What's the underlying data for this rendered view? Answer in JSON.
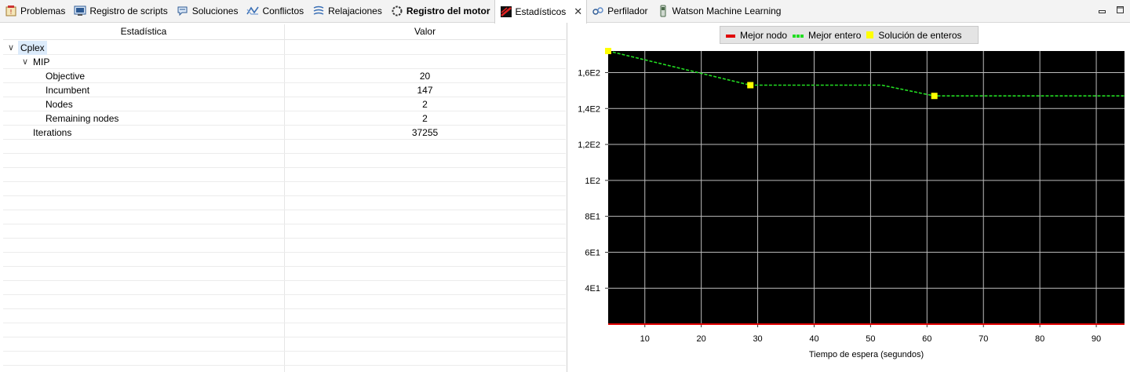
{
  "tabs": [
    {
      "label": "Problemas",
      "icon": "problems-icon"
    },
    {
      "label": "Registro de scripts",
      "icon": "script-log-icon"
    },
    {
      "label": "Soluciones",
      "icon": "solutions-icon"
    },
    {
      "label": "Conflictos",
      "icon": "conflicts-icon"
    },
    {
      "label": "Relajaciones",
      "icon": "relaxations-icon"
    },
    {
      "label": "Registro del motor",
      "icon": "engine-log-icon"
    },
    {
      "label": "Estadísticos",
      "icon": "statistics-icon"
    },
    {
      "label": "Perfilador",
      "icon": "profiler-icon"
    },
    {
      "label": "Watson Machine Learning",
      "icon": "watson-ml-icon"
    }
  ],
  "active_tab": "Estadísticos",
  "table": {
    "col_statistic": "Estadística",
    "col_value": "Valor",
    "rows": [
      {
        "name": "Cplex",
        "value": "",
        "level": 0,
        "expanded": true,
        "selected": true
      },
      {
        "name": "MIP",
        "value": "",
        "level": 1,
        "expanded": true
      },
      {
        "name": "Objective",
        "value": "20",
        "level": 2
      },
      {
        "name": "Incumbent",
        "value": "147",
        "level": 2
      },
      {
        "name": "Nodes",
        "value": "2",
        "level": 2
      },
      {
        "name": "Remaining nodes",
        "value": "2",
        "level": 2
      },
      {
        "name": "Iterations",
        "value": "37255",
        "level": 1
      }
    ]
  },
  "chart_data": {
    "type": "line",
    "xlabel": "Tiempo de espera (segundos)",
    "ylabel": "",
    "xlim": [
      3.5,
      95
    ],
    "ylim": [
      20,
      172
    ],
    "x_ticks": [
      10,
      20,
      30,
      40,
      50,
      60,
      70,
      80,
      90
    ],
    "y_ticks": [
      {
        "value": 40,
        "label": "4E1"
      },
      {
        "value": 60,
        "label": "6E1"
      },
      {
        "value": 80,
        "label": "8E1"
      },
      {
        "value": 100,
        "label": "1E2"
      },
      {
        "value": 120,
        "label": "1,2E2"
      },
      {
        "value": 140,
        "label": "1,4E2"
      },
      {
        "value": 160,
        "label": "1,6E2"
      }
    ],
    "grid": true,
    "legend_position": "top",
    "background": "#000000",
    "series": [
      {
        "name": "Mejor nodo",
        "style": "solid",
        "color": "#e00000",
        "points": [
          [
            3.5,
            20
          ],
          [
            95,
            20
          ]
        ]
      },
      {
        "name": "Mejor entero",
        "style": "dashed",
        "color": "#22dd22",
        "points": [
          [
            3.5,
            172
          ],
          [
            28.7,
            153
          ],
          [
            52,
            153
          ],
          [
            61.3,
            147
          ],
          [
            95,
            147
          ]
        ]
      },
      {
        "name": "Solución de enteros",
        "style": "markers",
        "color": "#ffff00",
        "points": [
          [
            3.5,
            172
          ],
          [
            28.7,
            153
          ],
          [
            61.3,
            147
          ]
        ]
      }
    ]
  }
}
